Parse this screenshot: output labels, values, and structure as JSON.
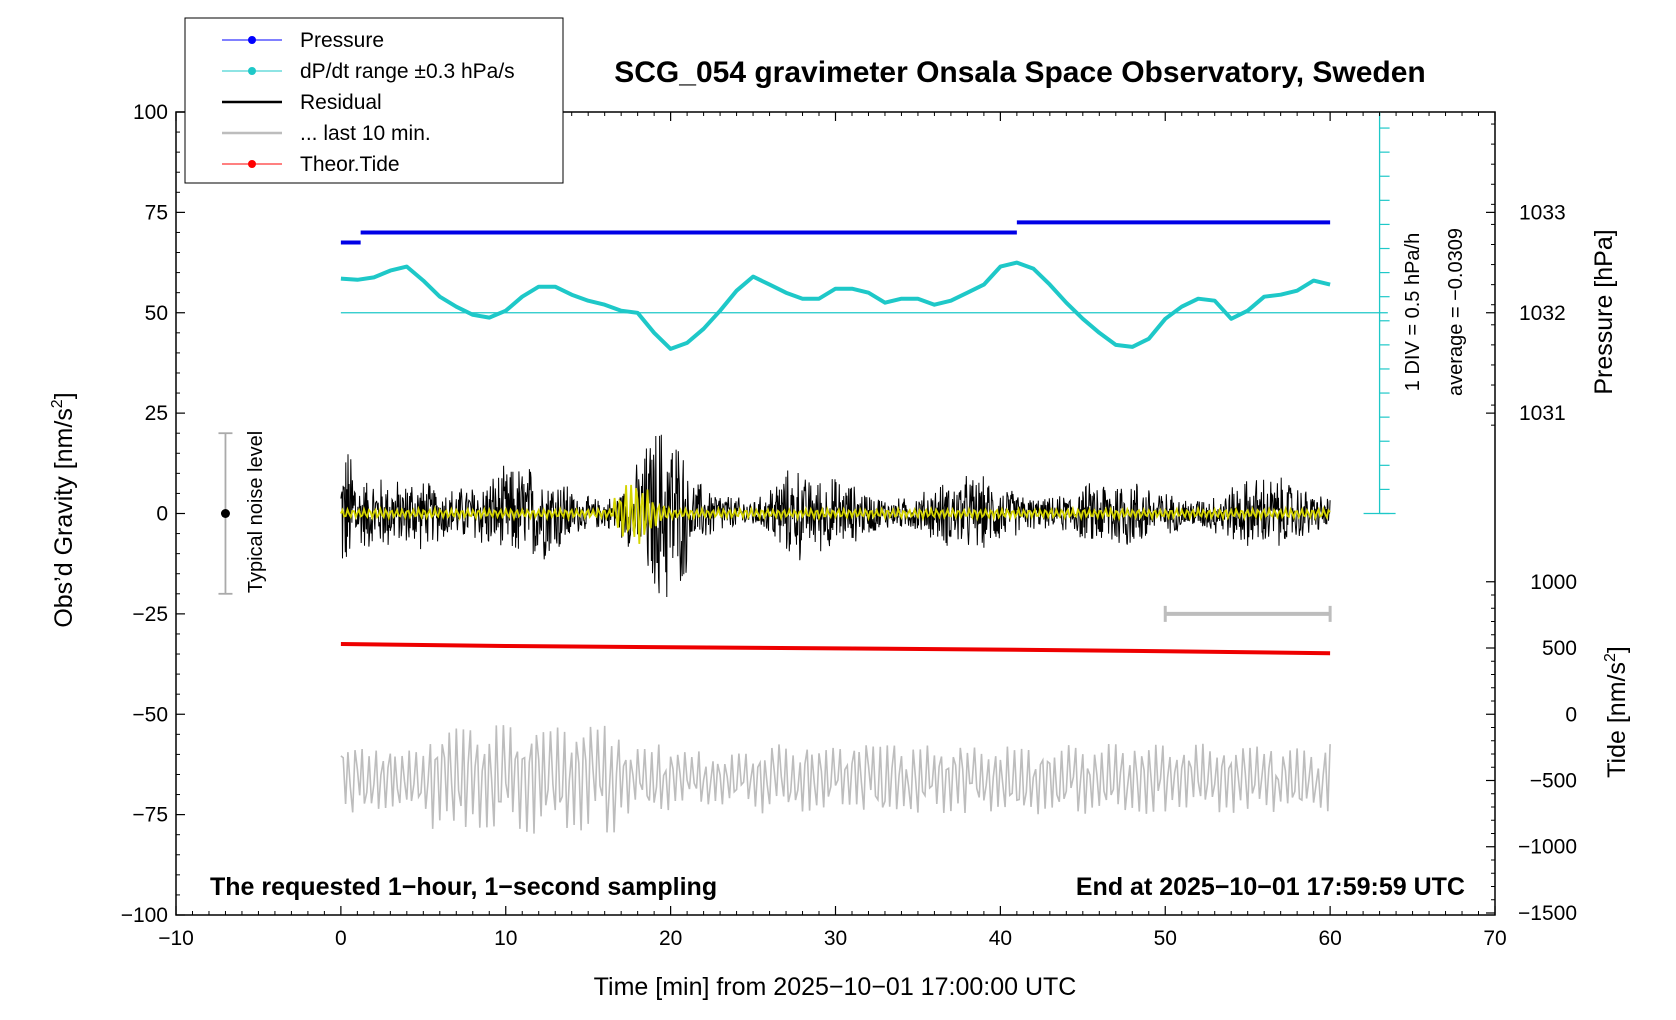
{
  "chart_data": {
    "type": "line",
    "title": "SCG_054 gravimeter Onsala Space Observatory, Sweden",
    "xlabel": "Time [min] from 2025−10−01 17:00:00 UTC",
    "ylabel_left_prefix": "Obs’d Gravity [nm/s",
    "ylabel_left_suffix": "]",
    "ylabel_left_sup": "2",
    "ylabel_right_pressure": "Pressure [hPa]",
    "ylabel_right_tide_prefix": "Tide [nm/s",
    "ylabel_right_tide_suffix": "]",
    "ylabel_right_tide_sup": "2",
    "xlim": [
      -10,
      70
    ],
    "ylim": [
      -100,
      100
    ],
    "x_ticks": [
      -10,
      0,
      10,
      20,
      30,
      40,
      50,
      60,
      70
    ],
    "x_tick_labels": [
      "−10",
      "0",
      "10",
      "20",
      "30",
      "40",
      "50",
      "60",
      "70"
    ],
    "y_ticks": [
      100,
      75,
      50,
      25,
      0,
      -25,
      -50,
      -75,
      -100
    ],
    "y_tick_labels": [
      "100",
      "75",
      "50",
      "25",
      "0",
      "−25",
      "−50",
      "−75",
      "−100"
    ],
    "pressure_axis": {
      "ticks": [
        {
          "label": "1033",
          "value": 1033,
          "at_left_y": 75
        },
        {
          "label": "1032",
          "value": 1032,
          "at_left_y": 50
        },
        {
          "label": "1031",
          "value": 1031,
          "at_left_y": 25
        }
      ]
    },
    "tide_axis": {
      "ticks": [
        {
          "label": "1000",
          "value": 1000,
          "at_left_y": -17
        },
        {
          "label": "500",
          "value": 500,
          "at_left_y": -33.5
        },
        {
          "label": "0",
          "value": 0,
          "at_left_y": -50
        },
        {
          "label": "−500",
          "value": -500,
          "at_left_y": -66.5
        },
        {
          "label": "−1000",
          "value": -1000,
          "at_left_y": -83
        },
        {
          "label": "−1500",
          "value": -1500,
          "at_left_y": -99.5
        }
      ]
    },
    "legend": {
      "placement": "top-left",
      "entries": [
        {
          "label": "Pressure",
          "color": "#0000ff",
          "marker": true
        },
        {
          "label": "dP/dt range ±0.3 hPa/s",
          "color": "#1ec8c8",
          "marker": true
        },
        {
          "label": "Residual",
          "color": "#000000",
          "marker": false
        },
        {
          "label": "... last 10 min.",
          "color": "#bdbdbd",
          "marker": false
        },
        {
          "label": "Theor.Tide",
          "color": "#ff0000",
          "marker": true
        }
      ]
    },
    "colors": {
      "pressure": "#0000e6",
      "dpdt": "#1ec8c8",
      "residual": "#000000",
      "residual_smoothed": "#d4d400",
      "last10": "#bdbdbd",
      "tide": "#ee0000",
      "noise_bar": "#aaaaaa"
    },
    "series": [
      {
        "name": "Pressure",
        "segments": [
          {
            "x": [
              0,
              1.2
            ],
            "y": 67.5
          },
          {
            "x": [
              1.2,
              41
            ],
            "y": 70
          },
          {
            "x": [
              41,
              60
            ],
            "y": 72.5
          }
        ]
      },
      {
        "name": "dP/dt range ±0.3 hPa/s",
        "x": [
          0,
          1,
          2,
          3,
          4,
          5,
          6,
          7,
          8,
          9,
          10,
          11,
          12,
          13,
          14,
          15,
          16,
          17,
          18,
          19,
          20,
          21,
          22,
          23,
          24,
          25,
          26,
          27,
          28,
          29,
          30,
          31,
          32,
          33,
          34,
          35,
          36,
          37,
          38,
          39,
          40,
          41,
          42,
          43,
          44,
          45,
          46,
          47,
          48,
          49,
          50,
          51,
          52,
          53,
          54,
          55,
          56,
          57,
          58,
          59,
          60
        ],
        "y": [
          58.5,
          58.2,
          58.8,
          60.5,
          61.5,
          58.0,
          54.0,
          51.5,
          49.5,
          48.8,
          50.5,
          54.0,
          56.5,
          56.5,
          54.5,
          53.0,
          52.0,
          50.5,
          50.0,
          45.0,
          41.0,
          42.5,
          46.0,
          50.5,
          55.5,
          59.0,
          57.0,
          55.0,
          53.5,
          53.5,
          56.0,
          56.0,
          55.0,
          52.5,
          53.5,
          53.5,
          52.0,
          53.0,
          55.0,
          57.0,
          61.5,
          62.5,
          61.0,
          57.0,
          52.5,
          48.5,
          45.0,
          42.0,
          41.5,
          43.5,
          48.5,
          51.5,
          53.5,
          53.0,
          48.5,
          50.5,
          54.0,
          54.5,
          55.5,
          58.0,
          57.0
        ]
      },
      {
        "name": "Residual",
        "x_range": [
          0,
          60
        ],
        "y_range": [
          -33,
          33
        ]
      },
      {
        "name": "... last 10 min.",
        "x_range": [
          0,
          60
        ],
        "center": -66,
        "y_range": [
          -81,
          -43
        ]
      },
      {
        "name": "Theor.Tide",
        "x": [
          0,
          10,
          20,
          30,
          40,
          50,
          60
        ],
        "y": [
          -32.5,
          -33.0,
          -33.3,
          -33.6,
          -33.9,
          -34.3,
          -34.8
        ]
      }
    ],
    "pressure_scale_bar": {
      "div_label": "1 DIV = 0.5 hPa/h",
      "average_label": "average = −0.0309",
      "x": 63,
      "y_range": [
        0,
        100
      ]
    },
    "noise_level": {
      "label": "Typical noise level",
      "x": -7,
      "y_range": [
        -20,
        20
      ],
      "center": 0
    },
    "last10_marker": {
      "x_range": [
        50,
        60
      ],
      "y": -25
    }
  },
  "footnote_left": "The requested 1−hour, 1−second sampling",
  "footnote_right": "End at 2025−10−01 17:59:59 UTC"
}
